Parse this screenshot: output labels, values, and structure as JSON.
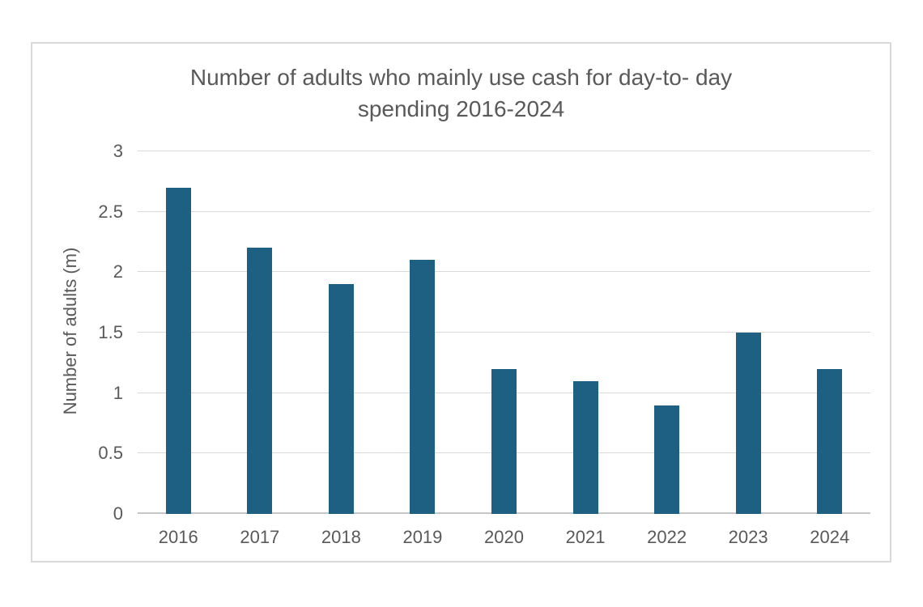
{
  "chart_data": {
    "type": "bar",
    "title": "Number of adults who mainly use cash for day-to- day spending 2016-2024",
    "title_lines": [
      "Number of adults who mainly use cash for day-to- day",
      "spending 2016-2024"
    ],
    "xlabel": "",
    "ylabel": "Number of adults (m)",
    "categories": [
      "2016",
      "2017",
      "2018",
      "2019",
      "2020",
      "2021",
      "2022",
      "2023",
      "2024"
    ],
    "values": [
      2.7,
      2.2,
      1.9,
      2.1,
      1.2,
      1.1,
      0.9,
      1.5,
      1.2
    ],
    "ylim": [
      0,
      3
    ],
    "yticks": [
      0,
      0.5,
      1,
      1.5,
      2,
      2.5,
      3
    ],
    "ytick_labels": [
      "0",
      "0.5",
      "1",
      "1.5",
      "2",
      "2.5",
      "3"
    ],
    "grid": true,
    "legend_position": "none",
    "colors": {
      "bar": "#1E6082",
      "text": "#595959",
      "gridline": "#D9D9D9",
      "axis_line": "#C6C6C6",
      "frame_border": "#D9D9D9",
      "background": "#FFFFFF"
    }
  }
}
